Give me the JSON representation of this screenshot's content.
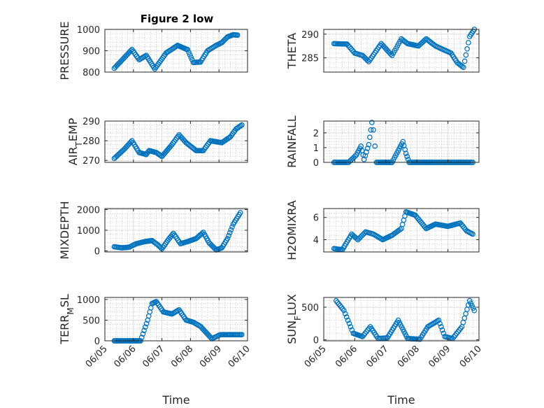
{
  "figure_title": "Figure 2 low",
  "marker_color": "#0072BD",
  "chart_data": [
    {
      "type": "scatter",
      "marker": "circle",
      "title": "Figure 2 low",
      "xlabel": "",
      "ylabel": "PRESSURE",
      "xlim": [
        0,
        5
      ],
      "ylim": [
        800,
        1000
      ],
      "yticks": [
        800,
        900,
        1000
      ],
      "ytick_labels": [
        "800",
        "900",
        "1000"
      ],
      "xticks": [
        0,
        1,
        2,
        3,
        4,
        5
      ],
      "xtick_labels": [],
      "x_units": "days since 06/05",
      "series": [
        {
          "name": "",
          "points": [
            [
              0.33,
              818
            ],
            [
              0.95,
              906
            ],
            [
              1.2,
              858
            ],
            [
              1.45,
              878
            ],
            [
              1.75,
              815
            ],
            [
              2.15,
              890
            ],
            [
              2.55,
              925
            ],
            [
              2.9,
              905
            ],
            [
              3.1,
              845
            ],
            [
              3.35,
              847
            ],
            [
              3.6,
              900
            ],
            [
              3.9,
              925
            ],
            [
              4.1,
              938
            ],
            [
              4.3,
              965
            ],
            [
              4.5,
              975
            ],
            [
              4.65,
              973
            ]
          ]
        }
      ]
    },
    {
      "type": "scatter",
      "marker": "circle",
      "title": "",
      "xlabel": "",
      "ylabel": "THETA",
      "xlim": [
        0,
        5
      ],
      "ylim": [
        282,
        291
      ],
      "yticks": [
        285,
        290
      ],
      "ytick_labels": [
        "285",
        "290"
      ],
      "xticks": [
        0,
        1,
        2,
        3,
        4,
        5
      ],
      "xtick_labels": [],
      "x_units": "days since 06/05",
      "series": [
        {
          "name": "",
          "points": [
            [
              0.33,
              288
            ],
            [
              0.75,
              287.9
            ],
            [
              1.0,
              286
            ],
            [
              1.25,
              285.5
            ],
            [
              1.45,
              284.2
            ],
            [
              1.85,
              288
            ],
            [
              2.2,
              285.5
            ],
            [
              2.5,
              289
            ],
            [
              2.7,
              288
            ],
            [
              3.05,
              287.5
            ],
            [
              3.3,
              289
            ],
            [
              3.6,
              287.5
            ],
            [
              4.1,
              286
            ],
            [
              4.3,
              284
            ],
            [
              4.5,
              283
            ],
            [
              4.7,
              289.5
            ],
            [
              4.85,
              291
            ]
          ]
        }
      ]
    },
    {
      "type": "scatter",
      "marker": "circle",
      "title": "",
      "xlabel": "",
      "ylabel": "AIR_TEMP",
      "xlim": [
        0,
        5
      ],
      "ylim": [
        269,
        290
      ],
      "yticks": [
        270,
        280,
        290
      ],
      "ytick_labels": [
        "270",
        "280",
        "290"
      ],
      "xticks": [
        0,
        1,
        2,
        3,
        4,
        5
      ],
      "xtick_labels": [],
      "x_units": "days since 06/05",
      "series": [
        {
          "name": "",
          "points": [
            [
              0.33,
              271
            ],
            [
              0.7,
              276
            ],
            [
              0.95,
              280
            ],
            [
              1.2,
              274
            ],
            [
              1.45,
              273
            ],
            [
              1.55,
              275
            ],
            [
              1.8,
              274
            ],
            [
              2.0,
              272
            ],
            [
              2.35,
              278
            ],
            [
              2.6,
              283
            ],
            [
              2.85,
              279
            ],
            [
              3.2,
              275
            ],
            [
              3.45,
              275
            ],
            [
              3.7,
              280
            ],
            [
              4.1,
              279
            ],
            [
              4.4,
              282
            ],
            [
              4.6,
              286
            ],
            [
              4.8,
              288
            ]
          ]
        }
      ]
    },
    {
      "type": "scatter",
      "marker": "circle",
      "title": "",
      "xlabel": "",
      "ylabel": "RAINFALL",
      "xlim": [
        0,
        5
      ],
      "ylim": [
        0,
        2.8
      ],
      "yticks": [
        0,
        1,
        2
      ],
      "ytick_labels": [
        "0",
        "1",
        "2"
      ],
      "xticks": [
        0,
        1,
        2,
        3,
        4,
        5
      ],
      "xtick_labels": [],
      "x_units": "days since 06/05",
      "series": [
        {
          "name": "",
          "points": [
            [
              0.33,
              0
            ],
            [
              0.8,
              0
            ],
            [
              1.05,
              0.5
            ],
            [
              1.2,
              1.1
            ],
            [
              1.3,
              0.2
            ],
            [
              1.45,
              1.2
            ],
            [
              1.55,
              2.7
            ],
            [
              1.6,
              2.2
            ],
            [
              1.7,
              0
            ],
            [
              2.2,
              0
            ],
            [
              2.4,
              0.8
            ],
            [
              2.55,
              1.4
            ],
            [
              2.65,
              0.6
            ],
            [
              2.75,
              0
            ],
            [
              3.5,
              0
            ],
            [
              4.8,
              0
            ]
          ]
        }
      ]
    },
    {
      "type": "scatter",
      "marker": "circle",
      "title": "",
      "xlabel": "",
      "ylabel": "MIXDEPTH",
      "xlim": [
        0,
        5
      ],
      "ylim": [
        -50,
        2050
      ],
      "yticks": [
        0,
        1000,
        2000
      ],
      "ytick_labels": [
        "0",
        "1000",
        "2000"
      ],
      "xticks": [
        0,
        1,
        2,
        3,
        4,
        5
      ],
      "xtick_labels": [],
      "x_units": "days since 06/05",
      "series": [
        {
          "name": "",
          "points": [
            [
              0.33,
              200
            ],
            [
              0.6,
              150
            ],
            [
              0.85,
              180
            ],
            [
              1.1,
              350
            ],
            [
              1.4,
              450
            ],
            [
              1.65,
              500
            ],
            [
              1.85,
              300
            ],
            [
              2.0,
              100
            ],
            [
              2.2,
              500
            ],
            [
              2.4,
              850
            ],
            [
              2.65,
              350
            ],
            [
              2.9,
              450
            ],
            [
              3.2,
              600
            ],
            [
              3.45,
              900
            ],
            [
              3.65,
              400
            ],
            [
              3.9,
              50
            ],
            [
              4.1,
              150
            ],
            [
              4.3,
              600
            ],
            [
              4.5,
              1300
            ],
            [
              4.75,
              1850
            ]
          ]
        }
      ]
    },
    {
      "type": "scatter",
      "marker": "circle",
      "title": "",
      "xlabel": "",
      "ylabel": "H2OMIXRA",
      "xlim": [
        0,
        5
      ],
      "ylim": [
        2.9,
        6.8
      ],
      "yticks": [
        4,
        6
      ],
      "ytick_labels": [
        "4",
        "6"
      ],
      "xticks": [
        0,
        1,
        2,
        3,
        4,
        5
      ],
      "xtick_labels": [],
      "x_units": "days since 06/05",
      "series": [
        {
          "name": "",
          "points": [
            [
              0.33,
              3.2
            ],
            [
              0.6,
              3.1
            ],
            [
              0.9,
              4.5
            ],
            [
              1.1,
              4
            ],
            [
              1.35,
              4.7
            ],
            [
              1.6,
              4.5
            ],
            [
              1.9,
              4
            ],
            [
              2.2,
              4.4
            ],
            [
              2.5,
              5
            ],
            [
              2.65,
              6.5
            ],
            [
              2.95,
              6.2
            ],
            [
              3.3,
              5
            ],
            [
              3.6,
              5.4
            ],
            [
              4.0,
              5.2
            ],
            [
              4.4,
              5.5
            ],
            [
              4.6,
              4.8
            ],
            [
              4.8,
              4.5
            ]
          ]
        }
      ]
    },
    {
      "type": "scatter",
      "marker": "circle",
      "title": "",
      "xlabel": "Time",
      "ylabel": "TERR_MSL",
      "xlim": [
        0,
        5
      ],
      "ylim": [
        0,
        1050
      ],
      "yticks": [
        0,
        500,
        1000
      ],
      "ytick_labels": [
        "0",
        "500",
        "1000"
      ],
      "xticks": [
        0,
        1,
        2,
        3,
        4,
        5
      ],
      "xtick_labels": [
        "06/05",
        "06/06",
        "06/07",
        "06/08",
        "06/09",
        "06/10"
      ],
      "x_units": "days since 06/05",
      "series": [
        {
          "name": "",
          "points": [
            [
              0.33,
              0
            ],
            [
              1.25,
              0
            ],
            [
              1.5,
              500
            ],
            [
              1.65,
              900
            ],
            [
              1.8,
              950
            ],
            [
              2.05,
              700
            ],
            [
              2.35,
              650
            ],
            [
              2.6,
              750
            ],
            [
              2.85,
              500
            ],
            [
              3.1,
              450
            ],
            [
              3.35,
              350
            ],
            [
              3.55,
              200
            ],
            [
              3.75,
              50
            ],
            [
              4.05,
              150
            ],
            [
              4.3,
              150
            ],
            [
              4.8,
              150
            ]
          ]
        }
      ]
    },
    {
      "type": "scatter",
      "marker": "circle",
      "title": "",
      "xlabel": "Time",
      "ylabel": "SUN_FLUX",
      "xlim": [
        0,
        5
      ],
      "ylim": [
        -15,
        650
      ],
      "yticks": [
        0,
        500
      ],
      "ytick_labels": [
        "0",
        "500"
      ],
      "xticks": [
        0,
        1,
        2,
        3,
        4,
        5
      ],
      "xtick_labels": [
        "06/05",
        "06/06",
        "06/07",
        "06/08",
        "06/09",
        "06/10"
      ],
      "x_units": "days since 06/05",
      "series": [
        {
          "name": "",
          "points": [
            [
              0.4,
              600
            ],
            [
              0.65,
              450
            ],
            [
              0.95,
              100
            ],
            [
              1.25,
              50
            ],
            [
              1.5,
              200
            ],
            [
              1.75,
              20
            ],
            [
              2.05,
              30
            ],
            [
              2.4,
              300
            ],
            [
              2.7,
              20
            ],
            [
              3.1,
              10
            ],
            [
              3.35,
              200
            ],
            [
              3.7,
              300
            ],
            [
              3.9,
              50
            ],
            [
              4.15,
              20
            ],
            [
              4.45,
              200
            ],
            [
              4.7,
              600
            ],
            [
              4.85,
              450
            ]
          ]
        }
      ]
    }
  ]
}
